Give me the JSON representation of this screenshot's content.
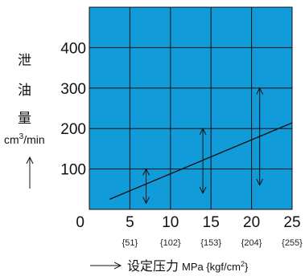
{
  "chart_data": {
    "type": "line",
    "x": [
      2.5,
      25
    ],
    "y": [
      25,
      214
    ],
    "xlim": [
      0,
      25
    ],
    "ylim": [
      0,
      500
    ],
    "grid": true,
    "background_color": "#119bd9",
    "line_color": "#111111",
    "x_ticks": [
      "0",
      "5",
      "10",
      "15",
      "20",
      "25"
    ],
    "x_subticks": [
      "{51}",
      "{102}",
      "{153}",
      "{204}",
      "{255}"
    ],
    "y_ticks": [
      "100",
      "200",
      "300",
      "400"
    ],
    "ylabel_chars": [
      "泄",
      "油",
      "量"
    ],
    "ylabel_unit_prefix": "cm",
    "ylabel_unit_sup": "3",
    "ylabel_unit_suffix": "/min",
    "xlabel_text": "设定压力",
    "xlabel_unit_prefix": "MPa {kgf/cm",
    "xlabel_unit_sup": "2",
    "xlabel_unit_suffix": "}",
    "ranges": [
      {
        "x": 7,
        "low": 15,
        "high": 100
      },
      {
        "x": 14,
        "low": 40,
        "high": 200
      },
      {
        "x": 21,
        "low": 60,
        "high": 300
      }
    ]
  }
}
